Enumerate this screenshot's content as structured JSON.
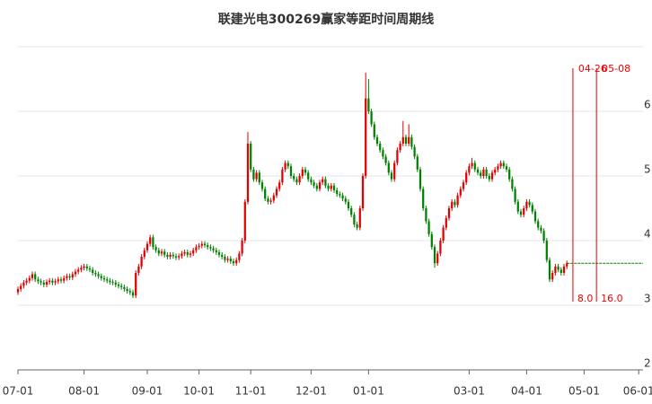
{
  "chart_data": {
    "type": "candlestick",
    "title": "联建光电300269赢家等距时间周期线",
    "up_color": "#e00000",
    "down_color": "#008000",
    "grid": true,
    "ylim": [
      2,
      7
    ],
    "yticks": [
      2,
      3,
      4,
      5,
      6
    ],
    "xlim": [
      0,
      217.5
    ],
    "xticks": [
      {
        "value": 0,
        "label": "07-01"
      },
      {
        "value": 23,
        "label": "08-01"
      },
      {
        "value": 45,
        "label": "09-01"
      },
      {
        "value": 63,
        "label": "10-01"
      },
      {
        "value": 81,
        "label": "11-01"
      },
      {
        "value": 102,
        "label": "12-01"
      },
      {
        "value": 122,
        "label": "01-01"
      },
      {
        "value": 157,
        "label": "03-01"
      },
      {
        "value": 177,
        "label": "04-01"
      },
      {
        "value": 197,
        "label": "05-01"
      },
      {
        "value": 216,
        "label": "06-01"
      }
    ],
    "markers": [
      {
        "x": 193.1,
        "label": "04-26",
        "bottom_label": "8.0"
      },
      {
        "x": 201.3,
        "label": "05-08",
        "bottom_label": "16.0"
      }
    ],
    "candles": [
      [
        3.2,
        3.29,
        3.16,
        3.25
      ],
      [
        3.25,
        3.34,
        3.21,
        3.3
      ],
      [
        3.3,
        3.39,
        3.26,
        3.35
      ],
      [
        3.35,
        3.42,
        3.31,
        3.38
      ],
      [
        3.38,
        3.46,
        3.34,
        3.42
      ],
      [
        3.42,
        3.52,
        3.38,
        3.48
      ],
      [
        3.48,
        3.52,
        3.36,
        3.4
      ],
      [
        3.4,
        3.44,
        3.33,
        3.37
      ],
      [
        3.37,
        3.41,
        3.31,
        3.35
      ],
      [
        3.35,
        3.39,
        3.28,
        3.32
      ],
      [
        3.32,
        3.4,
        3.28,
        3.36
      ],
      [
        3.36,
        3.42,
        3.32,
        3.38
      ],
      [
        3.38,
        3.42,
        3.31,
        3.35
      ],
      [
        3.35,
        3.41,
        3.31,
        3.37
      ],
      [
        3.37,
        3.44,
        3.33,
        3.4
      ],
      [
        3.4,
        3.44,
        3.34,
        3.38
      ],
      [
        3.38,
        3.46,
        3.34,
        3.42
      ],
      [
        3.42,
        3.49,
        3.38,
        3.45
      ],
      [
        3.45,
        3.49,
        3.39,
        3.43
      ],
      [
        3.43,
        3.52,
        3.39,
        3.48
      ],
      [
        3.48,
        3.56,
        3.44,
        3.52
      ],
      [
        3.52,
        3.59,
        3.48,
        3.55
      ],
      [
        3.55,
        3.62,
        3.51,
        3.58
      ],
      [
        3.58,
        3.64,
        3.54,
        3.6
      ],
      [
        3.6,
        3.64,
        3.53,
        3.57
      ],
      [
        3.57,
        3.61,
        3.51,
        3.55
      ],
      [
        3.55,
        3.59,
        3.46,
        3.5
      ],
      [
        3.5,
        3.54,
        3.44,
        3.48
      ],
      [
        3.48,
        3.52,
        3.41,
        3.45
      ],
      [
        3.45,
        3.49,
        3.38,
        3.42
      ],
      [
        3.42,
        3.46,
        3.36,
        3.4
      ],
      [
        3.4,
        3.44,
        3.34,
        3.38
      ],
      [
        3.38,
        3.42,
        3.32,
        3.36
      ],
      [
        3.36,
        3.4,
        3.31,
        3.35
      ],
      [
        3.35,
        3.39,
        3.28,
        3.32
      ],
      [
        3.32,
        3.36,
        3.26,
        3.3
      ],
      [
        3.3,
        3.34,
        3.24,
        3.28
      ],
      [
        3.28,
        3.32,
        3.21,
        3.25
      ],
      [
        3.25,
        3.29,
        3.18,
        3.22
      ],
      [
        3.22,
        3.26,
        3.16,
        3.2
      ],
      [
        3.2,
        3.24,
        3.11,
        3.15
      ],
      [
        3.15,
        3.54,
        3.11,
        3.5
      ],
      [
        3.5,
        3.64,
        3.46,
        3.6
      ],
      [
        3.6,
        3.79,
        3.56,
        3.75
      ],
      [
        3.75,
        3.89,
        3.71,
        3.85
      ],
      [
        3.85,
        3.99,
        3.81,
        3.95
      ],
      [
        3.95,
        4.09,
        3.91,
        4.05
      ],
      [
        4.05,
        4.09,
        3.86,
        3.9
      ],
      [
        3.9,
        3.94,
        3.81,
        3.85
      ],
      [
        3.85,
        3.89,
        3.76,
        3.8
      ],
      [
        3.8,
        3.87,
        3.76,
        3.83
      ],
      [
        3.83,
        3.87,
        3.74,
        3.78
      ],
      [
        3.78,
        3.82,
        3.71,
        3.75
      ],
      [
        3.75,
        3.82,
        3.71,
        3.78
      ],
      [
        3.78,
        3.82,
        3.72,
        3.76
      ],
      [
        3.76,
        3.8,
        3.7,
        3.74
      ],
      [
        3.74,
        3.8,
        3.7,
        3.76
      ],
      [
        3.76,
        3.84,
        3.72,
        3.8
      ],
      [
        3.8,
        3.86,
        3.76,
        3.82
      ],
      [
        3.82,
        3.86,
        3.74,
        3.78
      ],
      [
        3.78,
        3.84,
        3.74,
        3.8
      ],
      [
        3.8,
        3.89,
        3.76,
        3.85
      ],
      [
        3.85,
        3.94,
        3.81,
        3.9
      ],
      [
        3.9,
        3.96,
        3.86,
        3.92
      ],
      [
        3.92,
        3.99,
        3.88,
        3.95
      ],
      [
        3.95,
        3.99,
        3.89,
        3.93
      ],
      [
        3.93,
        3.97,
        3.86,
        3.9
      ],
      [
        3.9,
        3.94,
        3.84,
        3.88
      ],
      [
        3.88,
        3.92,
        3.81,
        3.85
      ],
      [
        3.85,
        3.89,
        3.78,
        3.82
      ],
      [
        3.82,
        3.86,
        3.74,
        3.78
      ],
      [
        3.78,
        3.82,
        3.71,
        3.75
      ],
      [
        3.75,
        3.79,
        3.66,
        3.7
      ],
      [
        3.7,
        3.76,
        3.66,
        3.72
      ],
      [
        3.72,
        3.76,
        3.64,
        3.68
      ],
      [
        3.68,
        3.72,
        3.61,
        3.65
      ],
      [
        3.65,
        3.74,
        3.61,
        3.7
      ],
      [
        3.7,
        3.84,
        3.66,
        3.8
      ],
      [
        3.8,
        4.04,
        3.76,
        4.0
      ],
      [
        4.0,
        4.64,
        3.96,
        4.6
      ],
      [
        4.6,
        5.68,
        4.56,
        5.5
      ],
      [
        5.5,
        5.54,
        5.06,
        5.1
      ],
      [
        5.1,
        5.14,
        4.91,
        4.95
      ],
      [
        4.95,
        5.09,
        4.91,
        5.05
      ],
      [
        5.05,
        5.09,
        4.86,
        4.9
      ],
      [
        4.9,
        4.94,
        4.76,
        4.8
      ],
      [
        4.8,
        4.84,
        4.61,
        4.65
      ],
      [
        4.65,
        4.69,
        4.56,
        4.6
      ],
      [
        4.6,
        4.66,
        4.56,
        4.62
      ],
      [
        4.62,
        4.74,
        4.58,
        4.7
      ],
      [
        4.7,
        4.84,
        4.66,
        4.8
      ],
      [
        4.8,
        4.94,
        4.76,
        4.9
      ],
      [
        4.9,
        5.14,
        4.86,
        5.1
      ],
      [
        5.1,
        5.24,
        5.06,
        5.2
      ],
      [
        5.2,
        5.24,
        5.11,
        5.15
      ],
      [
        5.15,
        5.19,
        4.96,
        5.0
      ],
      [
        5.0,
        5.04,
        4.91,
        4.95
      ],
      [
        4.95,
        4.99,
        4.86,
        4.9
      ],
      [
        4.9,
        5.04,
        4.86,
        5.0
      ],
      [
        5.0,
        5.14,
        4.96,
        5.1
      ],
      [
        5.1,
        5.14,
        5.01,
        5.05
      ],
      [
        5.05,
        5.09,
        4.91,
        4.95
      ],
      [
        4.95,
        4.99,
        4.86,
        4.9
      ],
      [
        4.9,
        4.94,
        4.81,
        4.85
      ],
      [
        4.85,
        4.89,
        4.76,
        4.8
      ],
      [
        4.8,
        4.94,
        4.76,
        4.9
      ],
      [
        4.9,
        4.99,
        4.86,
        4.95
      ],
      [
        4.95,
        4.99,
        4.81,
        4.85
      ],
      [
        4.85,
        4.89,
        4.76,
        4.8
      ],
      [
        4.8,
        4.89,
        4.76,
        4.85
      ],
      [
        4.85,
        4.89,
        4.74,
        4.78
      ],
      [
        4.78,
        4.82,
        4.68,
        4.72
      ],
      [
        4.72,
        4.76,
        4.66,
        4.7
      ],
      [
        4.7,
        4.74,
        4.61,
        4.65
      ],
      [
        4.65,
        4.69,
        4.56,
        4.6
      ],
      [
        4.6,
        4.64,
        4.46,
        4.5
      ],
      [
        4.5,
        4.54,
        4.36,
        4.4
      ],
      [
        4.4,
        4.44,
        4.21,
        4.25
      ],
      [
        4.25,
        4.29,
        4.16,
        4.2
      ],
      [
        4.2,
        4.54,
        4.16,
        4.5
      ],
      [
        4.5,
        5.04,
        4.46,
        5.0
      ],
      [
        5.0,
        6.6,
        4.96,
        6.2
      ],
      [
        6.2,
        6.5,
        5.96,
        6.0
      ],
      [
        6.0,
        6.04,
        5.76,
        5.8
      ],
      [
        5.8,
        5.84,
        5.56,
        5.6
      ],
      [
        5.6,
        5.64,
        5.46,
        5.5
      ],
      [
        5.5,
        5.54,
        5.36,
        5.4
      ],
      [
        5.4,
        5.44,
        5.26,
        5.3
      ],
      [
        5.3,
        5.34,
        5.16,
        5.2
      ],
      [
        5.2,
        5.24,
        5.01,
        5.05
      ],
      [
        5.05,
        5.09,
        4.91,
        4.95
      ],
      [
        4.95,
        5.24,
        4.91,
        5.2
      ],
      [
        5.2,
        5.44,
        5.16,
        5.4
      ],
      [
        5.4,
        5.54,
        5.36,
        5.5
      ],
      [
        5.5,
        5.85,
        5.46,
        5.6
      ],
      [
        5.6,
        5.64,
        5.46,
        5.5
      ],
      [
        5.5,
        5.8,
        5.46,
        5.6
      ],
      [
        5.6,
        5.64,
        5.41,
        5.45
      ],
      [
        5.45,
        5.49,
        5.26,
        5.3
      ],
      [
        5.3,
        5.34,
        5.06,
        5.1
      ],
      [
        5.1,
        5.14,
        4.76,
        4.8
      ],
      [
        4.8,
        4.84,
        4.46,
        4.5
      ],
      [
        4.5,
        4.54,
        4.26,
        4.3
      ],
      [
        4.3,
        4.34,
        4.06,
        4.1
      ],
      [
        4.1,
        4.14,
        3.86,
        3.9
      ],
      [
        3.9,
        3.94,
        3.58,
        3.65
      ],
      [
        3.65,
        3.84,
        3.61,
        3.8
      ],
      [
        3.8,
        4.04,
        3.76,
        4.0
      ],
      [
        4.0,
        4.24,
        3.96,
        4.2
      ],
      [
        4.2,
        4.39,
        4.16,
        4.35
      ],
      [
        4.35,
        4.54,
        4.31,
        4.5
      ],
      [
        4.5,
        4.64,
        4.46,
        4.6
      ],
      [
        4.6,
        4.64,
        4.51,
        4.55
      ],
      [
        4.55,
        4.74,
        4.51,
        4.7
      ],
      [
        4.7,
        4.84,
        4.66,
        4.8
      ],
      [
        4.8,
        4.94,
        4.76,
        4.9
      ],
      [
        4.9,
        5.09,
        4.86,
        5.05
      ],
      [
        5.05,
        5.19,
        5.01,
        5.15
      ],
      [
        5.15,
        5.28,
        5.11,
        5.2
      ],
      [
        5.2,
        5.24,
        5.06,
        5.1
      ],
      [
        5.1,
        5.14,
        5.01,
        5.05
      ],
      [
        5.05,
        5.09,
        4.96,
        5.0
      ],
      [
        5.0,
        5.14,
        4.96,
        5.1
      ],
      [
        5.1,
        5.14,
        4.96,
        5.0
      ],
      [
        5.0,
        5.04,
        4.91,
        4.95
      ],
      [
        4.95,
        5.09,
        4.91,
        5.05
      ],
      [
        5.05,
        5.14,
        5.01,
        5.1
      ],
      [
        5.1,
        5.19,
        5.06,
        5.15
      ],
      [
        5.15,
        5.24,
        5.11,
        5.2
      ],
      [
        5.2,
        5.24,
        5.11,
        5.15
      ],
      [
        5.15,
        5.19,
        5.06,
        5.1
      ],
      [
        5.1,
        5.14,
        4.91,
        4.95
      ],
      [
        4.95,
        4.99,
        4.76,
        4.8
      ],
      [
        4.8,
        4.84,
        4.56,
        4.6
      ],
      [
        4.6,
        4.64,
        4.41,
        4.45
      ],
      [
        4.45,
        4.49,
        4.36,
        4.4
      ],
      [
        4.4,
        4.54,
        4.36,
        4.5
      ],
      [
        4.5,
        4.64,
        4.46,
        4.6
      ],
      [
        4.6,
        4.64,
        4.51,
        4.55
      ],
      [
        4.55,
        4.59,
        4.41,
        4.45
      ],
      [
        4.45,
        4.49,
        4.26,
        4.3
      ],
      [
        4.3,
        4.34,
        4.16,
        4.2
      ],
      [
        4.2,
        4.24,
        4.11,
        4.15
      ],
      [
        4.15,
        4.19,
        3.96,
        4.0
      ],
      [
        4.0,
        4.04,
        3.66,
        3.7
      ],
      [
        3.7,
        3.74,
        3.36,
        3.4
      ],
      [
        3.4,
        3.54,
        3.36,
        3.5
      ],
      [
        3.5,
        3.64,
        3.46,
        3.6
      ],
      [
        3.6,
        3.64,
        3.51,
        3.55
      ],
      [
        3.55,
        3.59,
        3.46,
        3.5
      ],
      [
        3.5,
        3.64,
        3.46,
        3.6
      ],
      [
        3.6,
        3.69,
        3.56,
        3.65
      ]
    ]
  }
}
